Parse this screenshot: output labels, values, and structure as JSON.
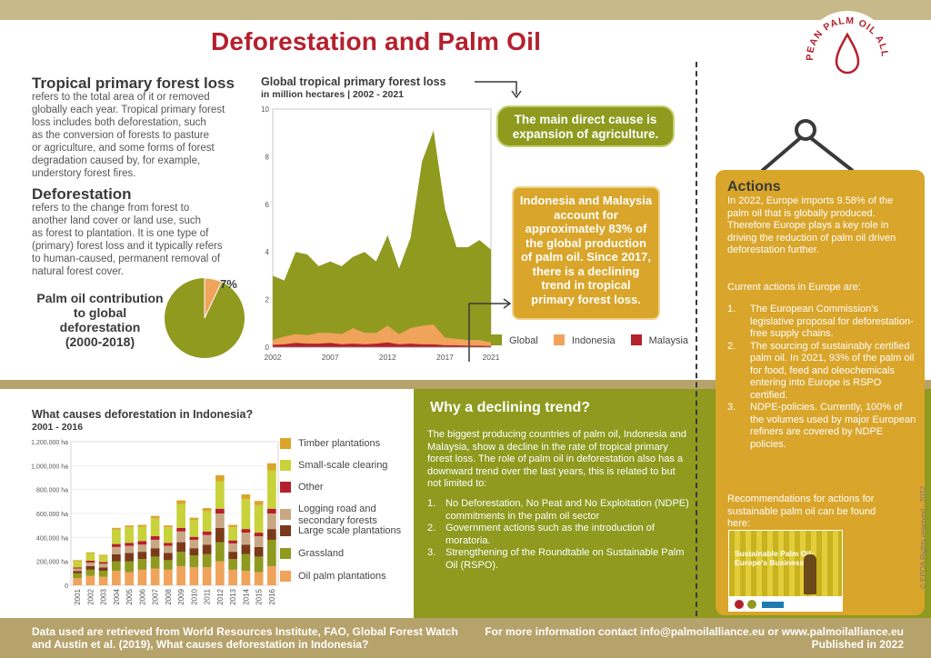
{
  "title": "Deforestation and Palm Oil",
  "logo_text": "EUROPEAN PALM OIL ALLIANCE",
  "definitions": {
    "forest_loss_title": "Tropical primary forest loss",
    "forest_loss_text": [
      "refers to the total area of it or removed",
      "globally each year. Tropical primary forest",
      "loss includes both deforestation, such",
      "as the conversion of forests to pasture",
      "or agriculture, and some forms of forest",
      "degradation caused by, for example,",
      "understory forest fires."
    ],
    "deforestation_title": "Deforestation",
    "deforestation_text": [
      "refers to the change from forest to",
      "another land cover or land use, such",
      "as forest to plantation. It is one type of",
      "(primary) forest loss and it typically refers",
      "to human-caused, permanent removal of",
      "natural forest cover."
    ]
  },
  "pie": {
    "label_lines": [
      "Palm oil contribution",
      "to global",
      "deforestation",
      "(2000-2018)"
    ],
    "share": 7,
    "share_label": "7%"
  },
  "line_chart": {
    "title": "Global tropical primary forest loss",
    "subtitle": "in million hectares | 2002 - 2021",
    "chart_data": {
      "type": "area",
      "x": [
        2002,
        2003,
        2004,
        2005,
        2006,
        2007,
        2008,
        2009,
        2010,
        2011,
        2012,
        2013,
        2014,
        2015,
        2016,
        2017,
        2018,
        2019,
        2020,
        2021
      ],
      "ylim": [
        0,
        10
      ],
      "yticks": [
        0,
        2,
        4,
        6,
        8,
        10
      ],
      "xticks": [
        2002,
        2007,
        2012,
        2017,
        2021
      ],
      "series": [
        {
          "name": "Global",
          "color": "#8f9a1f",
          "values": [
            3.0,
            2.8,
            4.0,
            3.9,
            3.4,
            3.6,
            3.4,
            3.8,
            4.0,
            3.6,
            4.7,
            3.3,
            4.6,
            7.8,
            9.1,
            5.8,
            4.2,
            4.2,
            4.5,
            4.1
          ]
        },
        {
          "name": "Indonesia",
          "color": "#f0a35a",
          "values": [
            0.3,
            0.45,
            0.55,
            0.5,
            0.6,
            0.6,
            0.55,
            0.8,
            0.6,
            0.6,
            0.9,
            0.55,
            0.8,
            0.9,
            0.95,
            0.4,
            0.35,
            0.3,
            0.3,
            0.2
          ]
        },
        {
          "name": "Malaysia",
          "color": "#b5202d",
          "values": [
            0.1,
            0.12,
            0.18,
            0.15,
            0.15,
            0.18,
            0.12,
            0.15,
            0.12,
            0.15,
            0.2,
            0.12,
            0.15,
            0.12,
            0.12,
            0.08,
            0.08,
            0.06,
            0.06,
            0.05
          ]
        }
      ]
    }
  },
  "callouts": {
    "main_cause": "The main direct cause is expansion of agriculture.",
    "indonesia_malaysia": "Indonesia and Malaysia account for approximately 83% of the global production of palm oil. Since 2017, there is a declining trend in tropical primary forest loss."
  },
  "actions": {
    "title": "Actions",
    "intro": "In 2022, Europe imports 9.58% of the palm oil that is globally produced. Therefore Europe plays a key role in driving the reduction of palm oil driven deforestation further.",
    "current_label": "Current actions in Europe are:",
    "items": [
      "The European Commission's legislative proposal for deforestation-free supply chains.",
      "The sourcing of sustainably certified palm oil. In 2021, 93% of the palm oil for food, feed and oleochemicals entering into Europe is RSPO certified.",
      "NDPE-policies. Currently, 100% of the volumes used by major European refiners are covered by NDPE policies."
    ],
    "recommend": "Recommendations for actions for sustainable palm oil can be found here:",
    "report_title": "Sustainable Palm Oil: Europe's Business"
  },
  "rights": "© EPOA Rights reserved - 2022",
  "bar_chart": {
    "title": "What causes deforestation in Indonesia?",
    "subtitle": "2001 - 2016",
    "chart_data": {
      "type": "bar",
      "categories": [
        "2001",
        "2002",
        "2003",
        "2004",
        "2005",
        "2006",
        "2007",
        "2008",
        "2009",
        "2010",
        "2011",
        "2012",
        "2013",
        "2014",
        "2015",
        "2016"
      ],
      "ylim": [
        0,
        1200000
      ],
      "yticks": [
        "0",
        "200,000 ha",
        "400,000 ha",
        "600,000 ha",
        "800,000 ha",
        "1,000,000 ha",
        "1,200,000 ha"
      ],
      "stacked": true,
      "series": [
        {
          "name": "Oil palm plantations",
          "color": "#f0a35a",
          "values": [
            60000,
            80000,
            70000,
            120000,
            110000,
            130000,
            140000,
            130000,
            160000,
            150000,
            150000,
            200000,
            130000,
            120000,
            110000,
            160000
          ]
        },
        {
          "name": "Grassland",
          "color": "#8f9a1f",
          "values": [
            40000,
            50000,
            50000,
            80000,
            90000,
            90000,
            100000,
            80000,
            120000,
            100000,
            110000,
            160000,
            90000,
            140000,
            130000,
            220000
          ]
        },
        {
          "name": "Large scale plantations",
          "color": "#7a3a1a",
          "values": [
            20000,
            30000,
            30000,
            60000,
            70000,
            60000,
            70000,
            60000,
            80000,
            60000,
            80000,
            120000,
            60000,
            80000,
            80000,
            90000
          ]
        },
        {
          "name": "Logging road and secondary forests",
          "color": "#c8a882",
          "values": [
            20000,
            30000,
            30000,
            60000,
            60000,
            60000,
            70000,
            60000,
            90000,
            70000,
            80000,
            120000,
            70000,
            100000,
            90000,
            130000
          ]
        },
        {
          "name": "Other",
          "color": "#b5202d",
          "values": [
            10000,
            15000,
            15000,
            25000,
            25000,
            30000,
            30000,
            25000,
            30000,
            25000,
            30000,
            40000,
            25000,
            30000,
            30000,
            40000
          ]
        },
        {
          "name": "Small-scale clearing",
          "color": "#c8d23a",
          "values": [
            50000,
            60000,
            50000,
            120000,
            130000,
            120000,
            150000,
            130000,
            200000,
            140000,
            170000,
            230000,
            110000,
            250000,
            230000,
            320000
          ]
        },
        {
          "name": "Timber plantations",
          "color": "#d9a52a",
          "values": [
            10000,
            10000,
            10000,
            15000,
            15000,
            15000,
            20000,
            15000,
            30000,
            20000,
            25000,
            50000,
            20000,
            40000,
            35000,
            60000
          ]
        }
      ]
    }
  },
  "decline": {
    "title": "Why a declining trend?",
    "intro": "The biggest producing countries of palm oil, Indonesia and Malaysia, show a decline in the rate of tropical primary forest loss. The role of palm oil in deforestation also has a downward trend over the last years, this is related to but not limited to:",
    "items": [
      "No Deforestation, No Peat and No Exploitation (NDPE) commitments in the palm oil sector",
      "Government actions such as the introduction of moratoria.",
      "Strengthening of the Roundtable on Sustainable Palm Oil (RSPO)."
    ]
  },
  "footer": {
    "source_line1": "Data used are retrieved from World Resources Institute, FAO, Global Forest Watch",
    "source_line2": "and Austin et al. (2019), What causes deforestation in Indonesia?",
    "contact": "For more information contact info@palmoilalliance.eu or www.palmoilalliance.eu",
    "published": "Published in 2022"
  }
}
